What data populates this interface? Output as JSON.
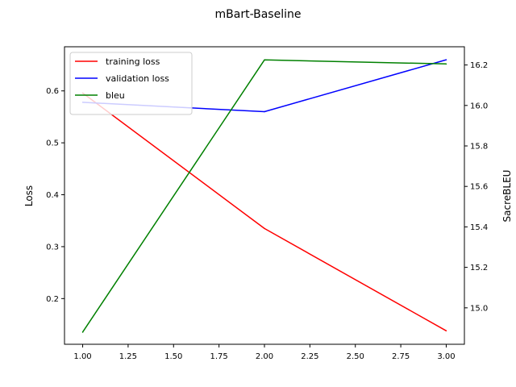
{
  "chart_data": {
    "type": "line",
    "title": "mBart-Baseline",
    "x": [
      1.0,
      2.0,
      3.0
    ],
    "xlim": [
      0.9,
      3.1
    ],
    "xticks": [
      "1.00",
      "1.25",
      "1.50",
      "1.75",
      "2.00",
      "2.25",
      "2.50",
      "2.75",
      "3.00"
    ],
    "xlabel": "",
    "left_axis": {
      "label": "Loss",
      "ylim": [
        0.112,
        0.685
      ],
      "ticks": [
        "0.2",
        "0.3",
        "0.4",
        "0.5",
        "0.6"
      ]
    },
    "right_axis": {
      "label": "SacreBLEU",
      "ylim": [
        14.82,
        16.29
      ],
      "ticks": [
        "15.0",
        "15.2",
        "15.4",
        "15.6",
        "15.8",
        "16.0",
        "16.2"
      ]
    },
    "series": [
      {
        "name": "training loss",
        "axis": "left",
        "color": "#ff0000",
        "values": [
          0.596,
          0.335,
          0.138
        ]
      },
      {
        "name": "validation loss",
        "axis": "left",
        "color": "#0000ff",
        "values": [
          0.578,
          0.56,
          0.66
        ]
      },
      {
        "name": "bleu",
        "axis": "right",
        "color": "#008000",
        "values": [
          14.88,
          16.225,
          16.205
        ]
      }
    ],
    "legend": {
      "position": "top-left"
    },
    "grid": false
  }
}
